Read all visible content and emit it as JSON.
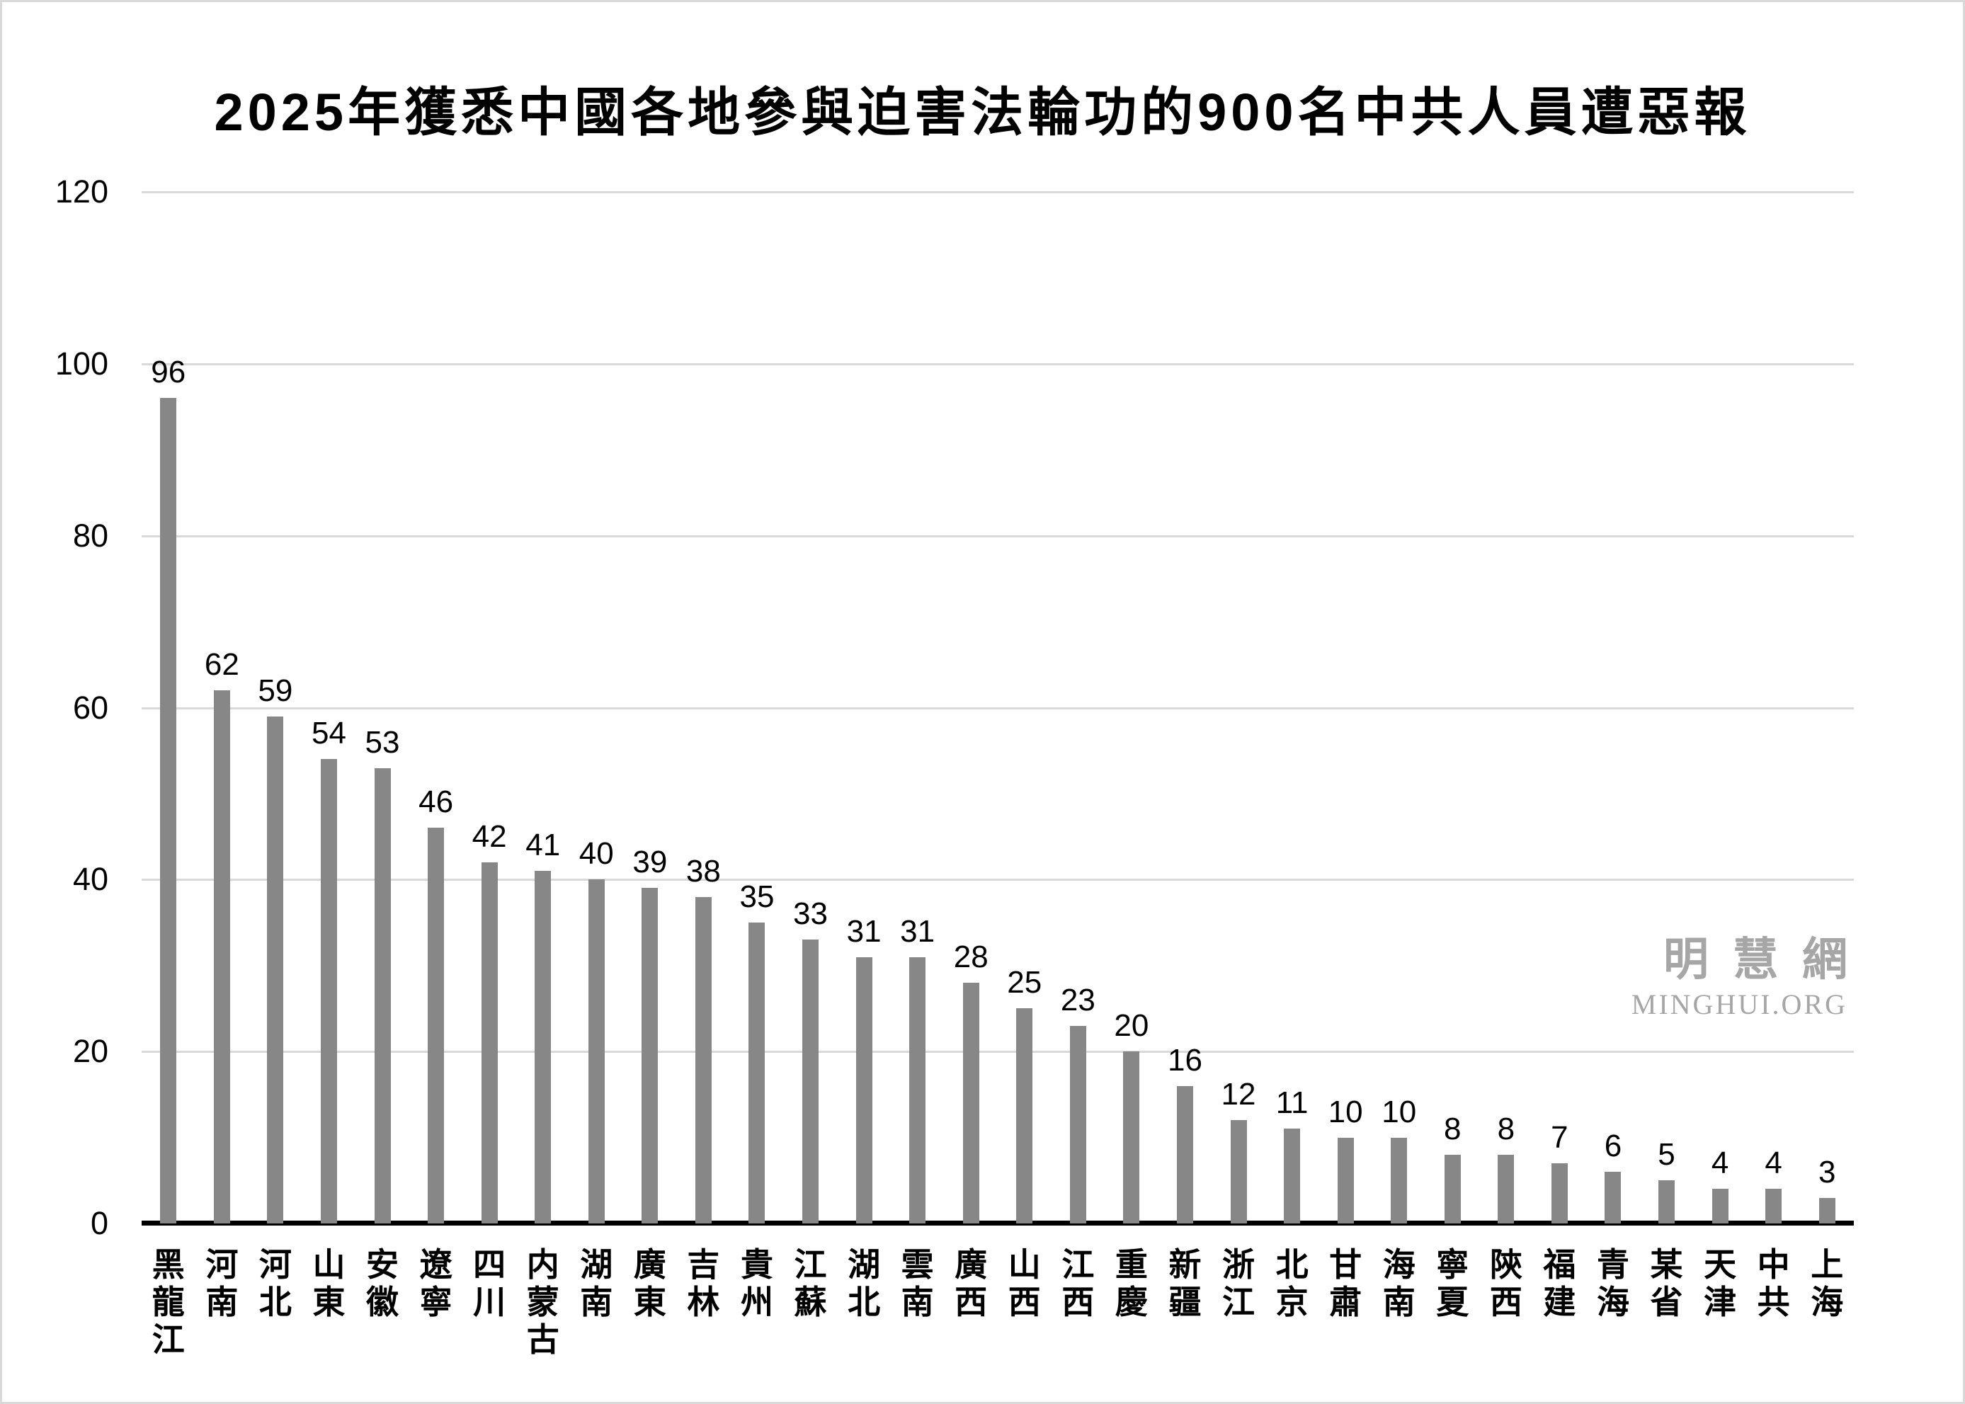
{
  "chart_data": {
    "type": "bar",
    "title": "2025年獲悉中國各地參與迫害法輪功的900名中共人員遭惡報",
    "categories": [
      "黑龍江",
      "河南",
      "河北",
      "山東",
      "安徽",
      "遼寧",
      "四川",
      "内蒙古",
      "湖南",
      "廣東",
      "吉林",
      "貴州",
      "江蘇",
      "湖北",
      "雲南",
      "廣西",
      "山西",
      "江西",
      "重慶",
      "新疆",
      "浙江",
      "北京",
      "甘肅",
      "海南",
      "寧夏",
      "陝西",
      "福建",
      "青海",
      "某省",
      "天津",
      "中共",
      "上海"
    ],
    "values": [
      96,
      62,
      59,
      54,
      53,
      46,
      42,
      41,
      40,
      39,
      38,
      35,
      33,
      31,
      31,
      28,
      25,
      23,
      20,
      16,
      12,
      11,
      10,
      10,
      8,
      8,
      7,
      6,
      5,
      4,
      4,
      3
    ],
    "xlabel": "",
    "ylabel": "",
    "ylim": [
      0,
      120
    ],
    "y_ticks": [
      0,
      20,
      40,
      60,
      80,
      100,
      120
    ],
    "grid": "horizontal",
    "legend_position": "none",
    "data_labels": "above-bars",
    "x_label_orientation": "vertical-stacked-characters",
    "bar_color": "#878787",
    "gridline_color": "#d9d9d9",
    "axis_line_color": "#000000",
    "text_color": "#000000"
  },
  "watermark": {
    "cjk": "明慧網",
    "latin": "MINGHUI.ORG",
    "color": "#a6a6a6"
  }
}
